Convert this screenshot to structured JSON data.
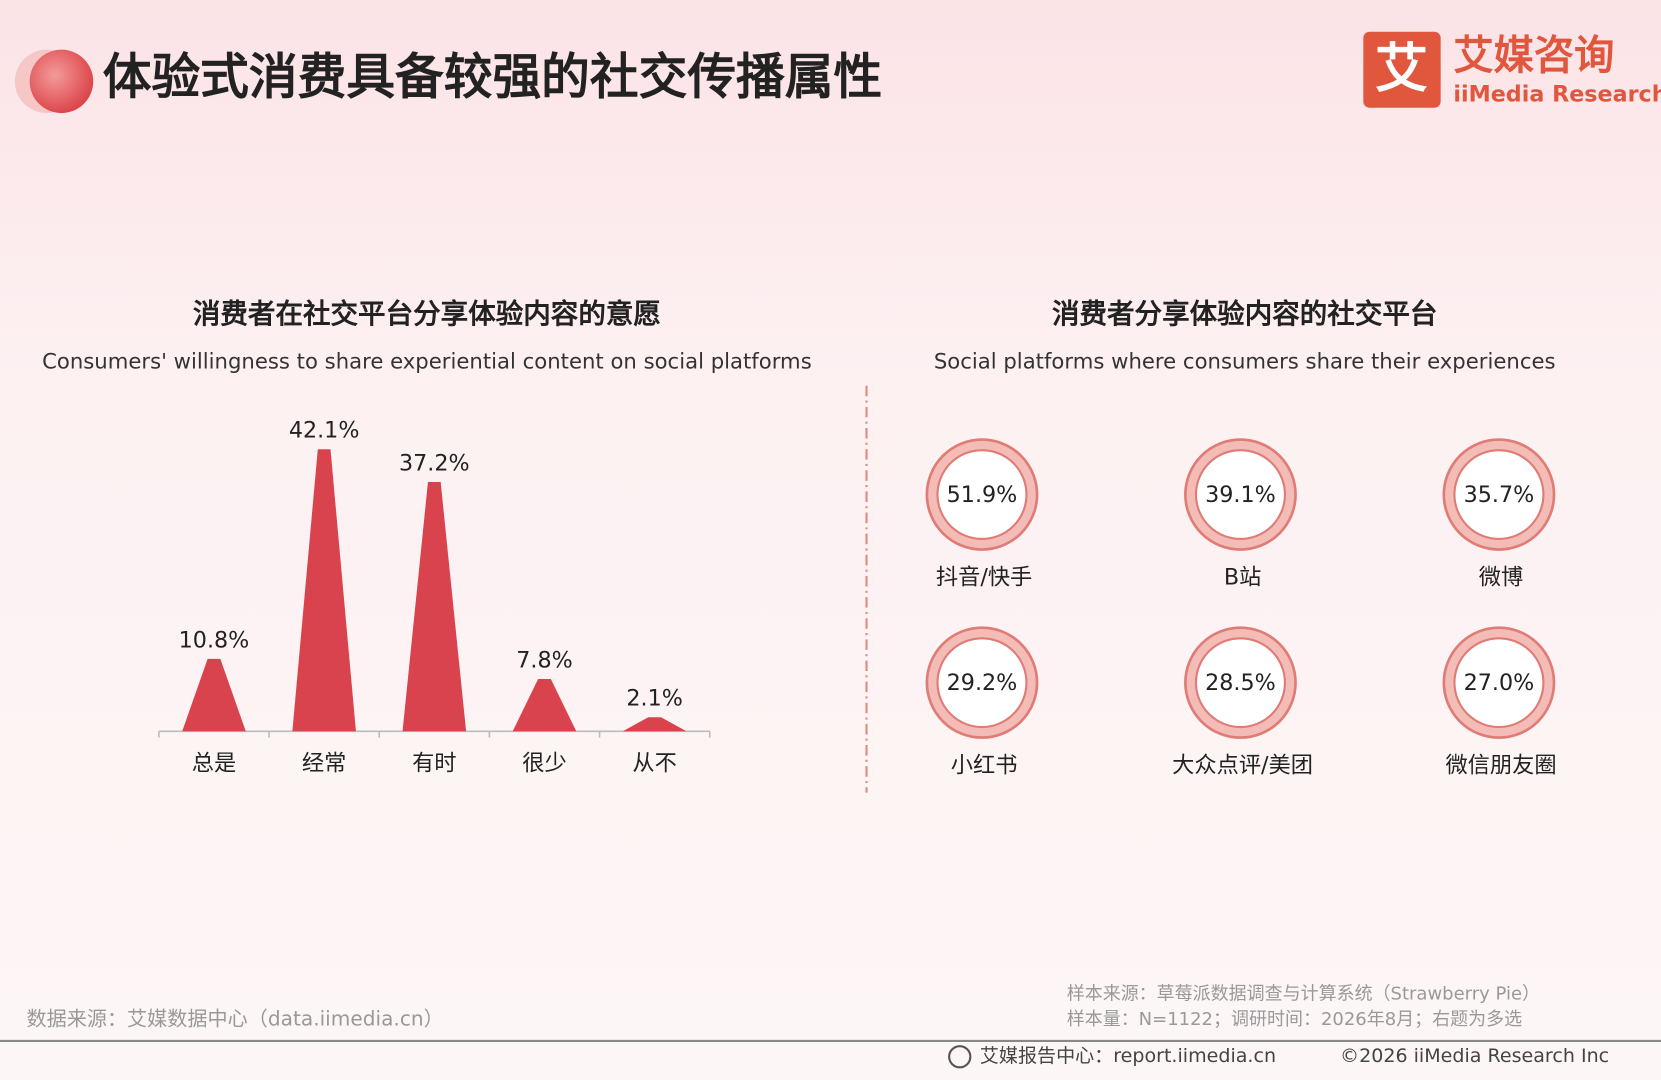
{
  "header": {
    "title": "体验式消费具备较强的社交传播属性",
    "logo": {
      "mark": "艾",
      "name": "艾媒咨询",
      "name_en": "iiMedia Research"
    }
  },
  "chart_data": [
    {
      "type": "bar",
      "title": "消费者在社交平台分享体验内容的意愿",
      "subtitle": "Consumers' willingness to share experiential content on social platforms",
      "categories": [
        "总是",
        "经常",
        "有时",
        "很少",
        "从不"
      ],
      "values": [
        10.8,
        42.1,
        37.2,
        7.8,
        2.1
      ],
      "value_labels": [
        "10.8%",
        "42.1%",
        "37.2%",
        "7.8%",
        "2.1%"
      ],
      "color": "#d9434e"
    },
    {
      "type": "ring",
      "title": "消费者分享体验内容的社交平台",
      "subtitle": "Social platforms where consumers share their experiences",
      "categories": [
        "抖音/快手",
        "B站",
        "微博",
        "小红书",
        "大众点评/美团",
        "微信朋友圈"
      ],
      "values": [
        51.9,
        39.1,
        35.7,
        29.2,
        28.5,
        27.0
      ],
      "value_labels": [
        "51.9%",
        "39.1%",
        "35.7%",
        "29.2%",
        "28.5%",
        "27.0%"
      ],
      "color": "#e07b75"
    }
  ],
  "footer": {
    "source": "数据来源：艾媒数据中心（data.iimedia.cn）",
    "sample_source": "样本来源：草莓派数据调查与计算系统（Strawberry Pie）",
    "sample_size": "样本量：N=1122；调研时间：2026年8月；右题为多选",
    "report_center": "艾媒报告中心：report.iimedia.cn",
    "copyright": "©2026  iiMedia Research  Inc"
  }
}
